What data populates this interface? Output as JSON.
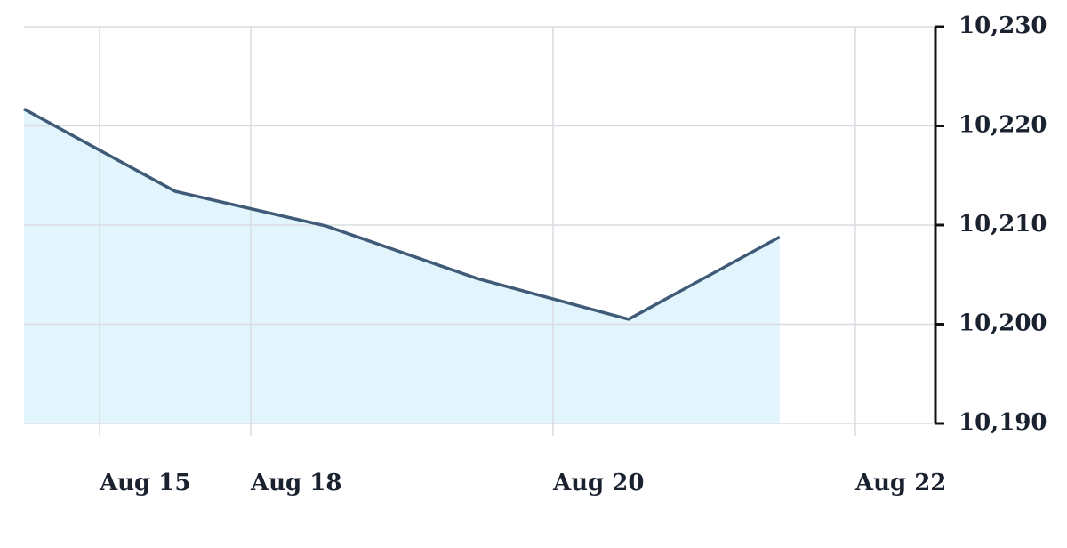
{
  "chart_data": {
    "type": "area",
    "x": [
      0,
      1,
      2,
      3,
      4,
      5
    ],
    "series": [
      {
        "color": "#3f5b78",
        "values": [
          10221.7,
          10213.4,
          10209.9,
          10204.6,
          10200.5,
          10208.8
        ]
      }
    ],
    "fill": "#e2f5fc",
    "xlim": [
      0,
      6.03
    ],
    "xticks": [
      {
        "value": 0.5,
        "label": "Aug 15"
      },
      {
        "value": 1.5,
        "label": "Aug 18"
      },
      {
        "value": 3.5,
        "label": "Aug 20"
      },
      {
        "value": 5.5,
        "label": "Aug 22"
      }
    ],
    "ylim": [
      10190,
      10230
    ],
    "yticks": [
      {
        "value": 10190,
        "label": "10,190"
      },
      {
        "value": 10200,
        "label": "10,200"
      },
      {
        "value": 10210,
        "label": "10,210"
      },
      {
        "value": 10220,
        "label": "10,220"
      },
      {
        "value": 10230,
        "label": "10,230"
      }
    ],
    "grid": true
  }
}
